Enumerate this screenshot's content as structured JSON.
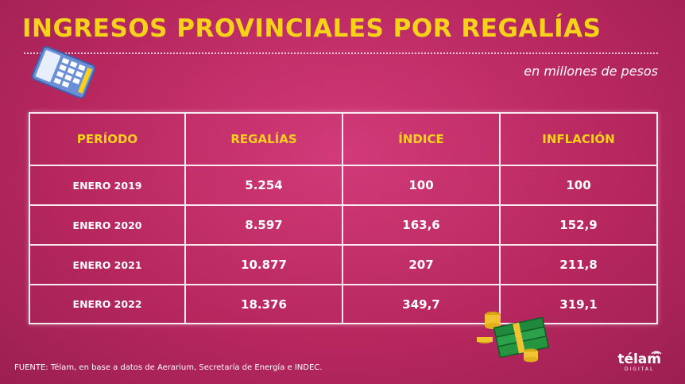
{
  "title": "INGRESOS PROVINCIALES POR REGALÍAS",
  "subtitle": "en millones de pesos",
  "source": "FUENTE: Télam, en base a datos de Aerarium, Secretaría de Energía e INDEC.",
  "logo": {
    "name": "télam",
    "tag": "DIGITAL"
  },
  "colors": {
    "background": "#c12d68",
    "accent": "#f6d21a",
    "text": "#ffffff"
  },
  "icons": [
    "calculator-icon",
    "money-stack-icon",
    "wifi-icon"
  ],
  "chart_data": {
    "type": "table",
    "columns": [
      "PERÍODO",
      "REGALÍAS",
      "ÍNDICE",
      "INFLACIÓN"
    ],
    "rows": [
      [
        "ENERO 2019",
        "5.254",
        "100",
        "100"
      ],
      [
        "ENERO 2020",
        "8.597",
        "163,6",
        "152,9"
      ],
      [
        "ENERO 2021",
        "10.877",
        "207",
        "211,8"
      ],
      [
        "ENERO 2022",
        "18.376",
        "349,7",
        "319,1"
      ]
    ]
  }
}
